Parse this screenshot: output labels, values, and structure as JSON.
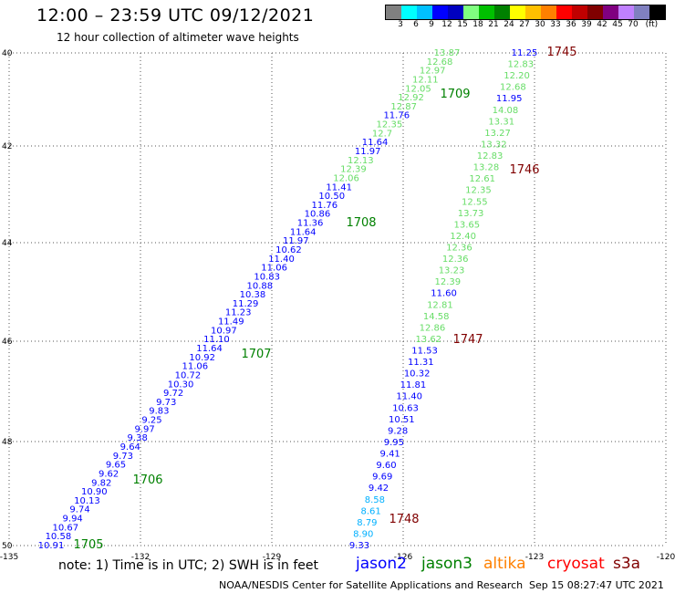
{
  "title": "12:00 – 23:59 UTC 09/12/2021",
  "subtitle": "12 hour collection of altimeter wave heights",
  "scale": {
    "unit_label": "(ft)",
    "swatches": [
      "#808080",
      "#00ffff",
      "#00c0ff",
      "#0000ff",
      "#0000c0",
      "#80ff80",
      "#00c000",
      "#008000",
      "#ffff00",
      "#ffc000",
      "#ff8000",
      "#ff0000",
      "#c00000",
      "#800000",
      "#800080",
      "#c080ff",
      "#8080c0",
      "#000000"
    ],
    "labels": [
      "3",
      "6",
      "9",
      "12",
      "15",
      "18",
      "21",
      "24",
      "27",
      "30",
      "33",
      "36",
      "39",
      "42",
      "45",
      "70"
    ]
  },
  "map": {
    "lon_labels": [
      "-135",
      "-132",
      "-129",
      "-126",
      "-123",
      "-120"
    ],
    "lat_labels": [
      "40",
      "42",
      "44",
      "46",
      "48",
      "50"
    ],
    "grid": "dotted"
  },
  "tracks": [
    {
      "id": "1705",
      "color": "#008000",
      "label_pos": "bottom-left"
    },
    {
      "id": "1706",
      "color": "#008000"
    },
    {
      "id": "1707",
      "color": "#008000"
    },
    {
      "id": "1708",
      "color": "#008000"
    },
    {
      "id": "1709",
      "color": "#008000"
    },
    {
      "id": "1745",
      "color": "#800000"
    },
    {
      "id": "1746",
      "color": "#800000"
    },
    {
      "id": "1747",
      "color": "#800000"
    },
    {
      "id": "1748",
      "color": "#800000"
    }
  ],
  "pass_a": [
    "10.91",
    "10.58",
    "10.67",
    "9.94",
    "9.74",
    "10.13",
    "10.90",
    "9.82",
    "9.62",
    "9.65",
    "9.73",
    "9.64",
    "9.38",
    "9.97",
    "9.25",
    "9.83",
    "9.73",
    "9.72",
    "10.30",
    "10.72",
    "11.06",
    "10.92",
    "11.64",
    "11.10",
    "10.97",
    "11.49",
    "11.23",
    "11.29",
    "10.38",
    "10.88",
    "10.83",
    "11.06",
    "11.40",
    "10.62",
    "11.97",
    "11.64",
    "11.36",
    "10.86",
    "11.76",
    "10.50",
    "11.41",
    "12.06",
    "12.39",
    "12.13",
    "11.97",
    "11.64",
    "12.7",
    "12.35",
    "11.76",
    "12.87",
    "12.92",
    "12.05",
    "12.11",
    "12.97",
    "12.68",
    "13.87"
  ],
  "pass_a_colors": [
    "b",
    "b",
    "b",
    "b",
    "b",
    "b",
    "b",
    "b",
    "b",
    "b",
    "b",
    "b",
    "b",
    "b",
    "b",
    "b",
    "b",
    "b",
    "b",
    "b",
    "b",
    "b",
    "b",
    "b",
    "b",
    "b",
    "b",
    "b",
    "b",
    "b",
    "b",
    "b",
    "b",
    "b",
    "b",
    "b",
    "b",
    "b",
    "b",
    "b",
    "b",
    "g",
    "g",
    "g",
    "b",
    "b",
    "g",
    "g",
    "b",
    "g",
    "g",
    "g",
    "g",
    "g",
    "g",
    "g"
  ],
  "pass_b": [
    "9.33",
    "8.90",
    "8.79",
    "8.61",
    "8.58",
    "9.42",
    "9.69",
    "9.60",
    "9.41",
    "9.95",
    "9.28",
    "10.51",
    "10.63",
    "11.40",
    "11.81",
    "10.32",
    "11.31",
    "11.53",
    "13.62",
    "12.86",
    "14.58",
    "12.81",
    "11.60",
    "12.39",
    "13.23",
    "12.36",
    "12.36",
    "12.40",
    "13.65",
    "13.73",
    "12.55",
    "12.35",
    "12.61",
    "13.28",
    "12.83",
    "13.32",
    "13.27",
    "13.31",
    "14.08",
    "11.95",
    "12.68",
    "12.20",
    "12.83",
    "11.25"
  ],
  "pass_b_colors": [
    "b",
    "c",
    "c",
    "c",
    "c",
    "b",
    "b",
    "b",
    "b",
    "b",
    "b",
    "b",
    "b",
    "b",
    "b",
    "b",
    "b",
    "b",
    "g",
    "g",
    "g",
    "g",
    "b",
    "g",
    "g",
    "g",
    "g",
    "g",
    "g",
    "g",
    "g",
    "g",
    "g",
    "g",
    "g",
    "g",
    "g",
    "g",
    "g",
    "b",
    "g",
    "g",
    "g",
    "b"
  ],
  "note": "note: 1) Time is in UTC; 2) SWH is in feet",
  "satellites": [
    {
      "name": "jason2",
      "color": "#0000ff"
    },
    {
      "name": "jason3",
      "color": "#008000"
    },
    {
      "name": "altika",
      "color": "#ff8000"
    },
    {
      "name": "cryosat",
      "color": "#ff0000"
    },
    {
      "name": "s3a",
      "color": "#800000"
    }
  ],
  "credit": "NOAA/NESDIS Center for Satellite Applications and Research",
  "timestamp": "Sep 15 08:27:47 UTC 2021"
}
